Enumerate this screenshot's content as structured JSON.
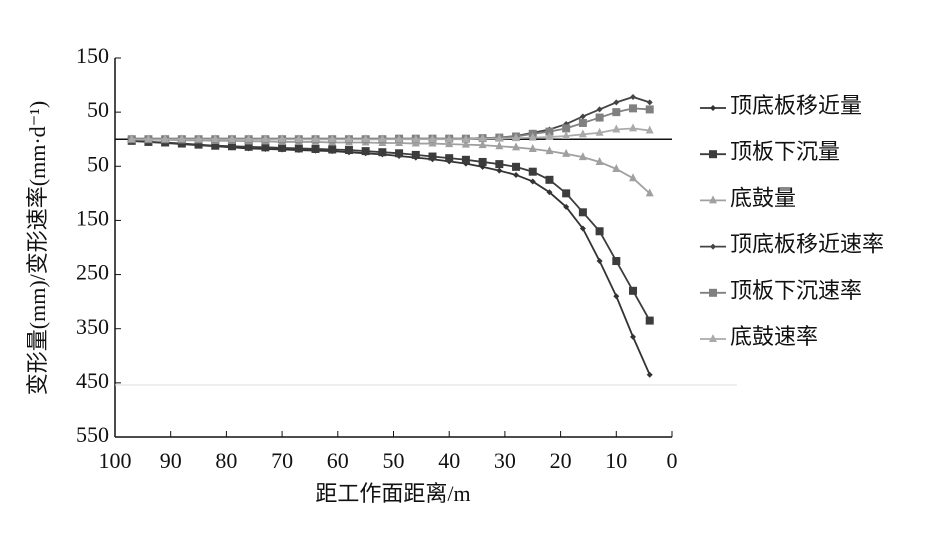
{
  "chart_data": {
    "type": "line",
    "xlabel": "距工作面距离/m",
    "ylabel": "变形量(mm)/变形速率(mm·d⁻¹)",
    "x": [
      97,
      94,
      91,
      88,
      85,
      82,
      79,
      76,
      73,
      70,
      67,
      64,
      61,
      58,
      55,
      52,
      49,
      46,
      43,
      40,
      37,
      34,
      31,
      28,
      25,
      22,
      19,
      16,
      13,
      10,
      7,
      4
    ],
    "series": [
      {
        "name": "顶底板移近量",
        "color": "#333333",
        "marker": "diamond",
        "values": [
          -3,
          -5,
          -7,
          -9,
          -11,
          -13,
          -15,
          -17,
          -18,
          -19,
          -20,
          -21,
          -22,
          -24,
          -26,
          -28,
          -31,
          -34,
          -37,
          -41,
          -45,
          -51,
          -58,
          -66,
          -78,
          -98,
          -125,
          -165,
          -225,
          -290,
          -365,
          -435
        ]
      },
      {
        "name": "顶板下沉量",
        "color": "#3c3c3c",
        "marker": "square",
        "values": [
          -3,
          -5,
          -6,
          -8,
          -10,
          -12,
          -13,
          -14,
          -15,
          -16,
          -17,
          -18,
          -19,
          -20,
          -22,
          -24,
          -26,
          -29,
          -32,
          -35,
          -38,
          -42,
          -46,
          -51,
          -60,
          -75,
          -100,
          -135,
          -170,
          -225,
          -280,
          -335
        ]
      },
      {
        "name": "底鼓量",
        "color": "#a0a0a0",
        "marker": "triangle",
        "values": [
          0,
          -1,
          -1,
          -2,
          -2,
          -3,
          -3,
          -4,
          -4,
          -5,
          -5,
          -5,
          -6,
          -6,
          -6,
          -7,
          -7,
          -8,
          -8,
          -9,
          -10,
          -11,
          -13,
          -15,
          -18,
          -22,
          -27,
          -33,
          -42,
          -55,
          -72,
          -100
        ]
      },
      {
        "name": "顶底板移近速率",
        "color": "#444444",
        "marker": "diamond",
        "values": [
          1,
          1,
          1,
          1,
          1,
          1,
          1,
          1,
          1,
          1,
          1,
          1,
          1,
          1,
          1,
          1,
          1,
          1,
          1,
          1,
          1,
          2,
          3,
          6,
          12,
          18,
          28,
          42,
          55,
          68,
          78,
          68
        ]
      },
      {
        "name": "顶板下沉速率",
        "color": "#808080",
        "marker": "square",
        "values": [
          0,
          0,
          0,
          0,
          0,
          0,
          0,
          0,
          0,
          0,
          0,
          0,
          0,
          0,
          0,
          0,
          1,
          1,
          1,
          1,
          1,
          2,
          3,
          5,
          10,
          14,
          20,
          30,
          40,
          50,
          57,
          55
        ]
      },
      {
        "name": "底鼓速率",
        "color": "#aaaaaa",
        "marker": "triangle",
        "values": [
          0,
          0,
          0,
          0,
          0,
          0,
          0,
          0,
          0,
          0,
          0,
          0,
          0,
          0,
          0,
          0,
          0,
          0,
          0,
          0,
          0,
          1,
          1,
          2,
          3,
          4,
          6,
          9,
          12,
          18,
          20,
          16
        ]
      }
    ],
    "xlim": [
      100,
      0
    ],
    "xticks": [
      100,
      90,
      80,
      70,
      60,
      50,
      40,
      30,
      20,
      10,
      0
    ],
    "ylim": [
      -550,
      150
    ],
    "yticks": [
      150,
      50,
      {
        "value": -50,
        "label": "50"
      },
      {
        "value": -150,
        "label": "150"
      },
      {
        "value": -250,
        "label": "250"
      },
      {
        "value": -350,
        "label": "350"
      },
      {
        "value": -450,
        "label": "450"
      },
      {
        "value": -550,
        "label": "550"
      }
    ]
  }
}
